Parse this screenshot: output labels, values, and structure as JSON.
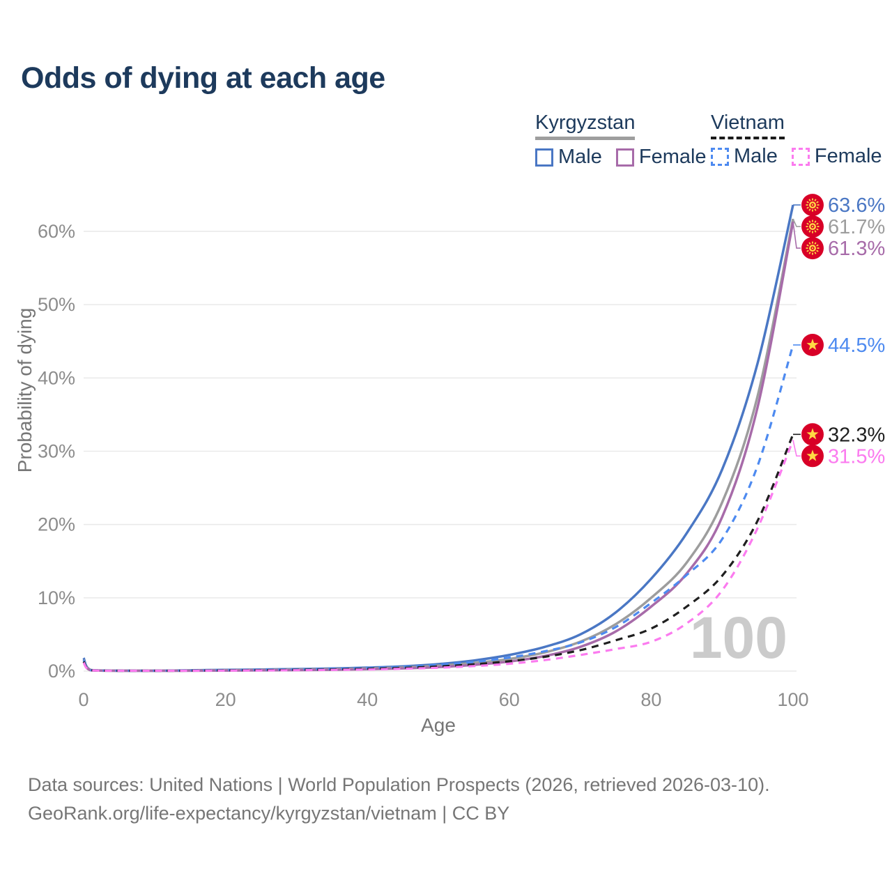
{
  "title": "Odds of dying at each age",
  "watermark_age": "100",
  "legend": {
    "groups": [
      {
        "country": "Kyrgyzstan",
        "line_style": "solid",
        "underline_color": "#9e9e9e",
        "items": [
          {
            "label": "Male",
            "color": "#4a77c4"
          },
          {
            "label": "Female",
            "color": "#a76ba9"
          }
        ]
      },
      {
        "country": "Vietnam",
        "line_style": "dashed",
        "underline_color": "#1a1a1a",
        "items": [
          {
            "label": "Male",
            "color": "#4d8af0"
          },
          {
            "label": "Female",
            "color": "#fb7bef"
          }
        ]
      }
    ]
  },
  "axes": {
    "x": {
      "label": "Age",
      "ticks": [
        "0",
        "20",
        "40",
        "60",
        "80",
        "100"
      ],
      "tick_values": [
        0,
        20,
        40,
        60,
        80,
        100
      ]
    },
    "y": {
      "label": "Probability of dying",
      "ticks": [
        "0%",
        "10%",
        "20%",
        "30%",
        "40%",
        "50%",
        "60%"
      ],
      "tick_values": [
        0,
        10,
        20,
        30,
        40,
        50,
        60
      ]
    }
  },
  "footer": {
    "line1": "Data sources: United Nations | World Population Prospects (2026, retrieved 2026-03-10).",
    "line2": "GeoRank.org/life-expectancy/kyrgyzstan/vietnam | CC BY"
  },
  "colors": {
    "title": "#1d3a5c",
    "grid": "#e9e9e9",
    "tick_text": "#8c8c8c",
    "axis_title": "#767676",
    "watermark": "#cbcbcb",
    "flag_red": "#d80027",
    "flag_yellow": "#ffda44"
  },
  "chart_data": {
    "type": "line",
    "title": "Odds of dying at each age",
    "xlabel": "Age",
    "ylabel": "Probability of dying",
    "xlim": [
      0,
      100
    ],
    "ylim_pct": [
      0,
      66
    ],
    "grid": "horizontal",
    "legend_position": "top-right",
    "x": [
      0,
      1,
      5,
      10,
      15,
      20,
      25,
      30,
      35,
      40,
      45,
      50,
      55,
      60,
      65,
      70,
      75,
      80,
      85,
      90,
      95,
      100
    ],
    "series": [
      {
        "name": "Kyrgyzstan Male",
        "country": "Kyrgyzstan",
        "sex": "Male",
        "flag": "kg",
        "style": "solid",
        "color": "#4a77c4",
        "end_label": "63.6%",
        "values_pct": [
          1.8,
          0.15,
          0.06,
          0.05,
          0.1,
          0.17,
          0.22,
          0.28,
          0.36,
          0.48,
          0.65,
          0.95,
          1.45,
          2.2,
          3.3,
          5.0,
          8.0,
          12.6,
          18.8,
          27.5,
          42.0,
          63.6
        ]
      },
      {
        "name": "Kyrgyzstan Both sexes",
        "country": "Kyrgyzstan",
        "sex": "Both",
        "flag": "kg",
        "style": "solid",
        "color": "#9d9d9d",
        "end_label": "61.7%",
        "values_pct": [
          1.55,
          0.13,
          0.05,
          0.04,
          0.07,
          0.12,
          0.16,
          0.2,
          0.27,
          0.36,
          0.5,
          0.73,
          1.1,
          1.65,
          2.55,
          4.0,
          6.4,
          10.0,
          14.8,
          23.0,
          37.5,
          61.7
        ]
      },
      {
        "name": "Kyrgyzstan Female",
        "country": "Kyrgyzstan",
        "sex": "Female",
        "flag": "kg",
        "style": "solid",
        "color": "#a76ba9",
        "end_label": "61.3%",
        "values_pct": [
          1.3,
          0.11,
          0.045,
          0.035,
          0.05,
          0.07,
          0.1,
          0.13,
          0.18,
          0.26,
          0.37,
          0.55,
          0.85,
          1.3,
          2.05,
          3.3,
          5.4,
          8.8,
          13.3,
          21.0,
          36.0,
          61.3
        ]
      },
      {
        "name": "Vietnam Male",
        "country": "Vietnam",
        "sex": "Male",
        "flag": "vn",
        "style": "dashed",
        "color": "#4d8af0",
        "end_label": "44.5%",
        "values_pct": [
          1.5,
          0.12,
          0.05,
          0.04,
          0.08,
          0.14,
          0.18,
          0.23,
          0.3,
          0.42,
          0.58,
          0.85,
          1.25,
          1.85,
          2.7,
          3.9,
          6.0,
          9.3,
          13.1,
          18.0,
          28.0,
          44.5
        ]
      },
      {
        "name": "Vietnam Both sexes",
        "country": "Vietnam",
        "sex": "Both",
        "flag": "vn",
        "style": "dashed",
        "color": "#1f1f1f",
        "end_label": "32.3%",
        "values_pct": [
          1.3,
          0.11,
          0.045,
          0.035,
          0.06,
          0.1,
          0.13,
          0.17,
          0.22,
          0.31,
          0.44,
          0.63,
          0.92,
          1.35,
          1.95,
          2.85,
          4.2,
          5.8,
          8.8,
          13.0,
          20.5,
          32.3
        ]
      },
      {
        "name": "Vietnam Female",
        "country": "Vietnam",
        "sex": "Female",
        "flag": "vn",
        "style": "dashed",
        "color": "#fb7bef",
        "end_label": "31.5%",
        "values_pct": [
          1.15,
          0.1,
          0.04,
          0.03,
          0.05,
          0.07,
          0.09,
          0.12,
          0.16,
          0.22,
          0.32,
          0.46,
          0.68,
          1.0,
          1.5,
          2.2,
          3.0,
          4.0,
          6.5,
          11.0,
          19.5,
          31.5
        ]
      }
    ]
  }
}
